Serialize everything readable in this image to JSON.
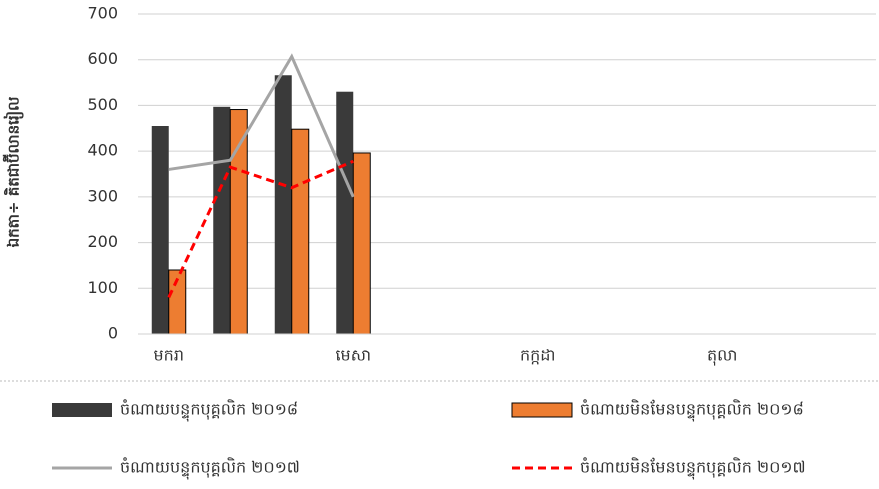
{
  "chart_data": {
    "type": "bar",
    "y_axis_label": "ឯកតា÷ គិតជាប៊ីលានរៀល",
    "categories": [
      "មករា",
      null,
      null,
      "មេសា",
      null,
      null,
      "កក្កដា",
      null,
      null,
      "តុលា",
      null,
      null
    ],
    "series": [
      {
        "name": "ចំណាយបន្ទុកបុគ្គលិក ២០១៨",
        "type": "bar",
        "color": "#3a3a3a",
        "values": [
          455,
          497,
          566,
          530,
          null,
          null,
          null,
          null,
          null,
          null,
          null,
          null
        ]
      },
      {
        "name": "ចំណាយមិនមែនបន្ទុកបុគ្គលិក ២០១៨",
        "type": "bar",
        "color": "#ed7d31",
        "values": [
          140,
          491,
          448,
          396,
          null,
          null,
          null,
          null,
          null,
          null,
          null,
          null
        ]
      },
      {
        "name": "ចំណាយបន្ទុកបុគ្គលិក ២០១៧",
        "type": "line",
        "color": "#a5a5a5",
        "values": [
          360,
          380,
          607,
          300,
          null,
          null,
          null,
          null,
          null,
          null,
          null,
          null
        ]
      },
      {
        "name": "ចំណាយមិនមែនបន្ទុកបុគ្គលិក ២០១៧",
        "type": "line",
        "line_style": "dashed",
        "color": "#ff0000",
        "values": [
          80,
          365,
          320,
          378,
          null,
          null,
          null,
          null,
          null,
          null,
          null,
          null
        ]
      }
    ],
    "ylim": [
      0,
      700
    ],
    "yticks": [
      0,
      100,
      200,
      300,
      400,
      500,
      600,
      700
    ],
    "grid": true,
    "legend": "bottom"
  }
}
